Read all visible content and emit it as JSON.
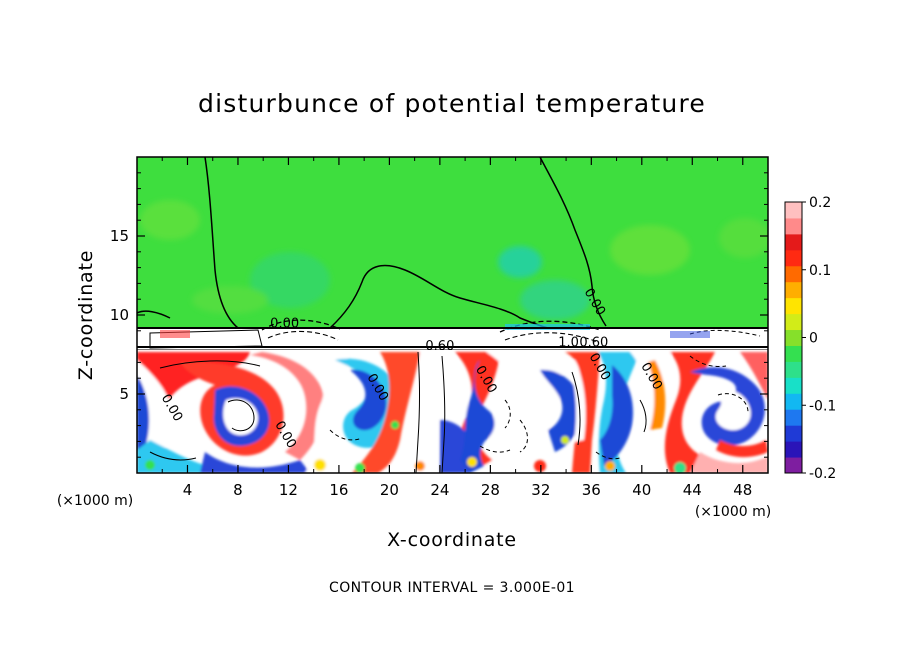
{
  "chart_data": {
    "type": "heatmap",
    "title": "disturbunce of potential temperature",
    "xlabel": "X-coordinate",
    "ylabel": "Z-coordinate",
    "x_unit": "(×1000 m)",
    "xlim": [
      0,
      50
    ],
    "ylim": [
      0,
      20
    ],
    "x_ticks": [
      4,
      8,
      12,
      16,
      20,
      24,
      28,
      32,
      36,
      40,
      44,
      48
    ],
    "y_ticks": [
      5,
      10,
      15
    ],
    "colorbar": {
      "range": [
        -0.2,
        0.2
      ],
      "tick_labels": [
        "0.2",
        "0.1",
        "0",
        "-0.1",
        "-0.2"
      ],
      "tick_values": [
        0.2,
        0.1,
        0,
        -0.1,
        -0.2
      ],
      "colors": [
        "#7e1ea0",
        "#2a14b8",
        "#1f3ad6",
        "#1e78f0",
        "#12b8f2",
        "#18e0c8",
        "#2ee08a",
        "#34e050",
        "#86e02a",
        "#d2ec18",
        "#ffe400",
        "#ffae00",
        "#ff6a00",
        "#ff2a12",
        "#e41a1a",
        "#ff8a8a",
        "#ffc0c0"
      ]
    },
    "contour_labels": [
      {
        "x": 11.7,
        "z": 9.2,
        "text": "0.00"
      },
      {
        "x": 24.0,
        "z": 7.8,
        "text": "0.60"
      },
      {
        "x": 34.2,
        "z": 8.0,
        "text": "1.0"
      },
      {
        "x": 36.2,
        "z": 8.0,
        "text": "0.60"
      },
      {
        "x": 36.0,
        "z": 10.7,
        "text": "0.00"
      },
      {
        "x": 2.5,
        "z": 4.0,
        "text": "0.00"
      },
      {
        "x": 11.5,
        "z": 2.3,
        "text": "0.00"
      },
      {
        "x": 18.8,
        "z": 5.3,
        "text": "0.00"
      },
      {
        "x": 27.4,
        "z": 5.8,
        "text": "0.00"
      },
      {
        "x": 36.4,
        "z": 6.6,
        "text": "0.00"
      },
      {
        "x": 40.5,
        "z": 6.0,
        "text": "0.00"
      }
    ],
    "contour_interval_note": "CONTOUR INTERVAL = 3.000E-01",
    "grid": false,
    "legend": "right"
  }
}
